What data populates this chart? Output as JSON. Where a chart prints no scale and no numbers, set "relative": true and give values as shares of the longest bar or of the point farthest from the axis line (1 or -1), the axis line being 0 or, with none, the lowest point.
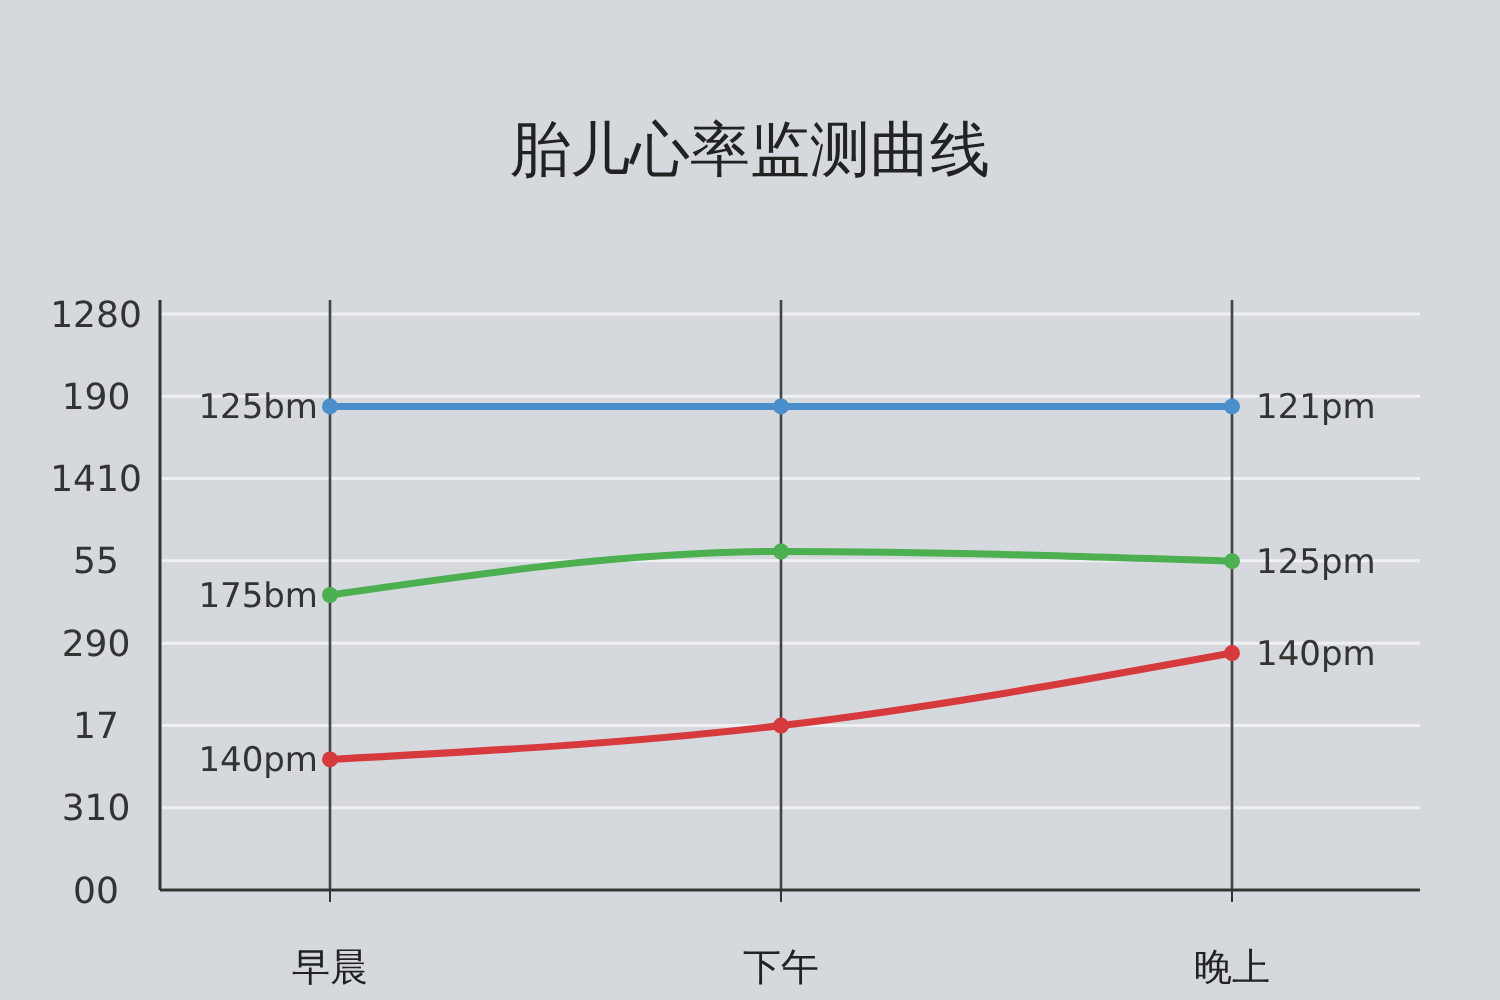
{
  "chart_data": {
    "type": "line",
    "title": "胎儿心率监测曲线",
    "categories": [
      "早晨",
      "下午",
      "晚上"
    ],
    "relative": true,
    "series": [
      {
        "color": "#4a8fcc",
        "values": [
          1,
          1,
          1
        ]
      },
      {
        "color": "#4caf50",
        "values": [
          0.61,
          0.7,
          0.68
        ]
      },
      {
        "color": "#d63a3d",
        "values": [
          0.27,
          0.34,
          0.49
        ]
      }
    ],
    "annotations": [
      "1280",
      "190",
      "1410",
      "55",
      "290",
      "17",
      "310",
      "00",
      {
        "text": "125bm",
        "x": "早晨",
        "y": 1
      },
      {
        "text": "121pm",
        "x": "晚上",
        "y": 1
      },
      {
        "text": "175bm",
        "x": "早晨",
        "y": 0.61
      },
      {
        "text": "125pm",
        "x": "晚上",
        "y": 0.68
      },
      {
        "text": "140pm",
        "x": "早晨",
        "y": 0.27
      },
      {
        "text": "140pm",
        "x": "晚上",
        "y": 0.49
      }
    ],
    "grid": true,
    "marker": "circle",
    "line_style": "solid"
  }
}
